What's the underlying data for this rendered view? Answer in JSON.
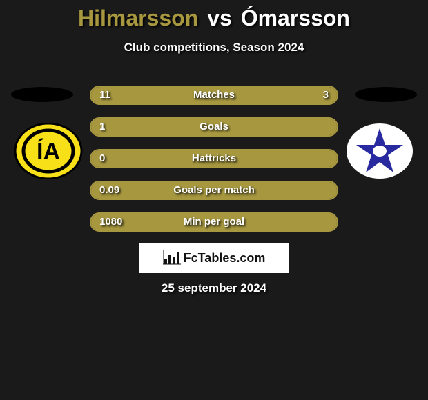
{
  "colors": {
    "accent": "#a79840",
    "background": "#1a1a1a",
    "white": "#ffffff"
  },
  "title": {
    "player1": "Hilmarsson",
    "vs": "vs",
    "player2": "Ómarsson"
  },
  "subtitle": "Club competitions, Season 2024",
  "team_left": {
    "name": "ia-akranes",
    "bg_color": "#f7e018",
    "fg_color": "#000000",
    "letters": "IA"
  },
  "team_right": {
    "name": "stjarnan",
    "bg_color": "#ffffff",
    "star_color": "#2a2aa0"
  },
  "bars": [
    {
      "label": "Matches",
      "left": "11",
      "right": "3",
      "left_pct": 78.6,
      "right_pct": 21.4
    },
    {
      "label": "Goals",
      "left": "1",
      "right": "",
      "left_pct": 100,
      "right_pct": 0
    },
    {
      "label": "Hattricks",
      "left": "0",
      "right": "",
      "left_pct": 100,
      "right_pct": 0
    },
    {
      "label": "Goals per match",
      "left": "0.09",
      "right": "",
      "left_pct": 100,
      "right_pct": 0
    },
    {
      "label": "Min per goal",
      "left": "1080",
      "right": "",
      "left_pct": 100,
      "right_pct": 0
    }
  ],
  "brand": "FcTables.com",
  "date": "25 september 2024"
}
